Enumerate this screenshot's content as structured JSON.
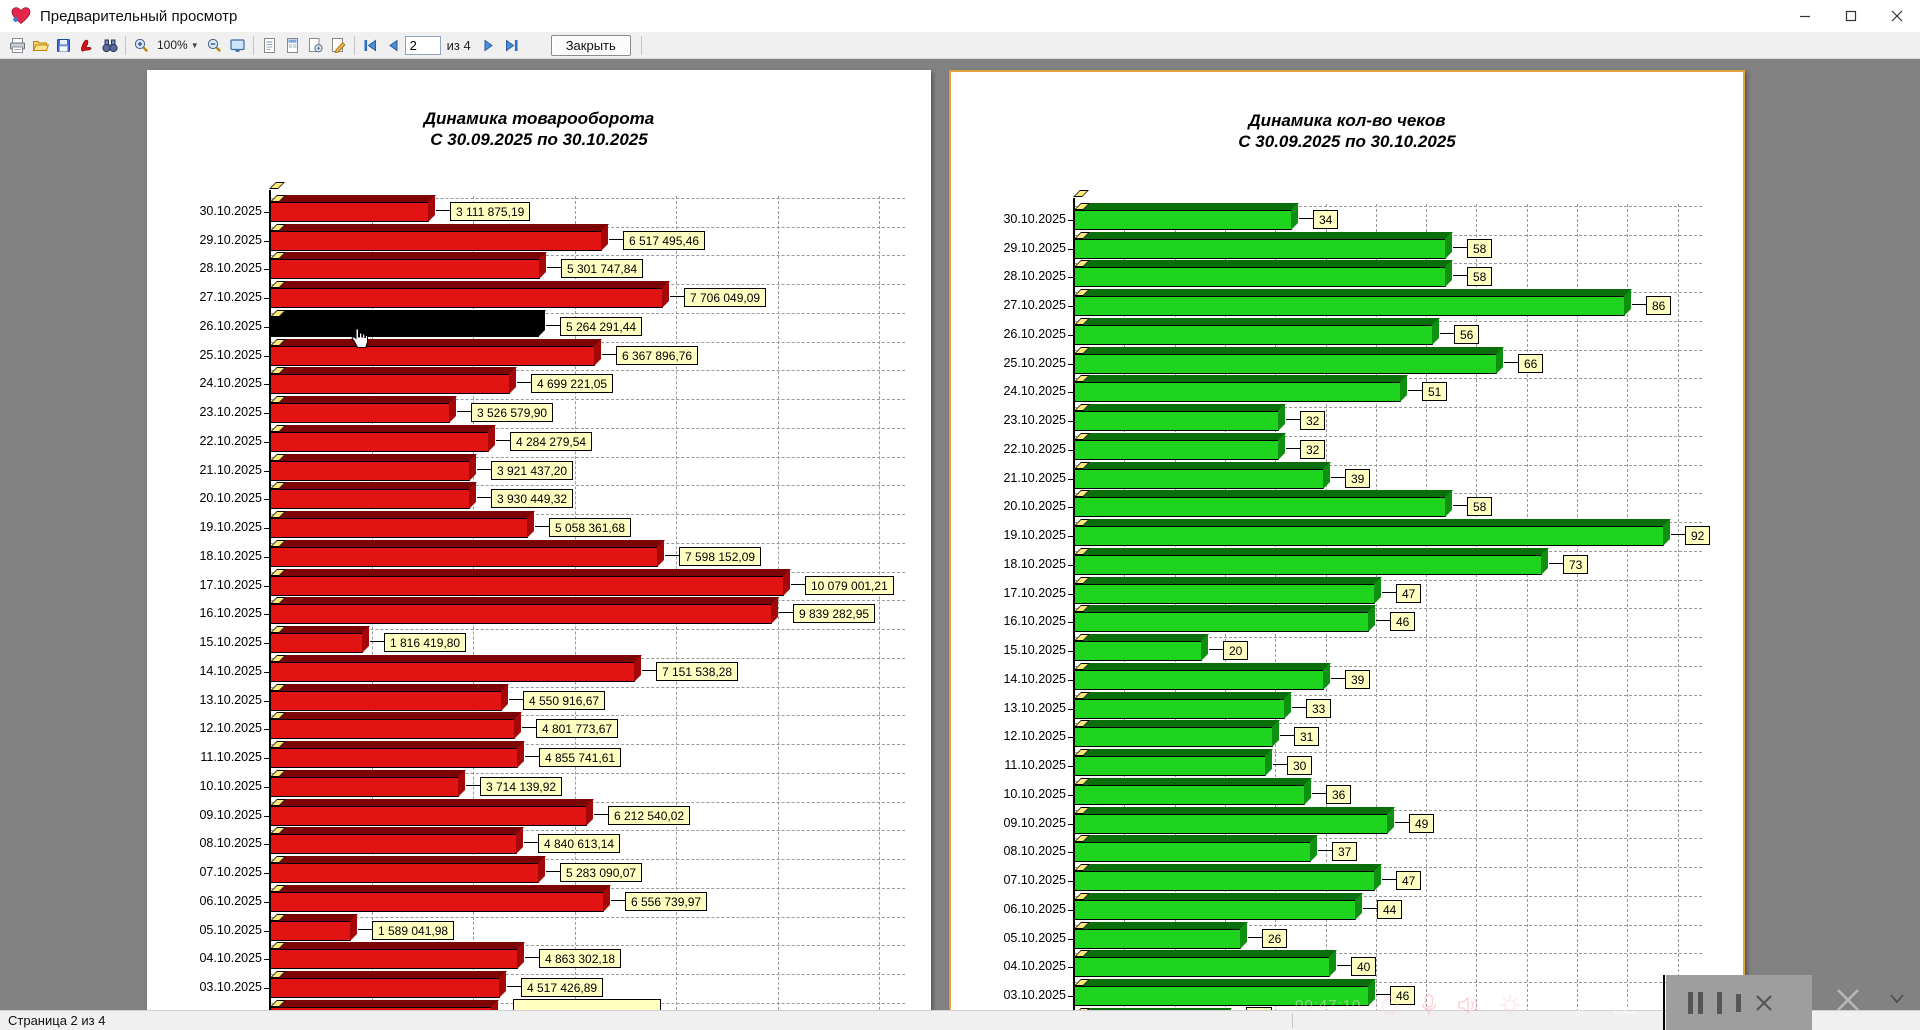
{
  "window": {
    "title": "Предварительный просмотр",
    "app_icon": "heart-logo",
    "controls": [
      "minimize",
      "maximize",
      "close"
    ]
  },
  "toolbar": {
    "icons": [
      "print",
      "open",
      "save",
      "export-pdf",
      "find",
      "zoom-in",
      "zoom-out",
      "fit-page",
      "page-text-view",
      "page-thumbnails-view",
      "page-tools",
      "page-edit",
      "first-page",
      "prev-page",
      "next-page",
      "last-page"
    ],
    "zoom_value": "100%",
    "page_value": "2",
    "pages_of_label": "из 4",
    "close_label": "Закрыть"
  },
  "status_bar": {
    "text": "Страница 2 из 4"
  },
  "overlay": {
    "timer": "00:47:10",
    "icons": [
      "stopwatch",
      "microphone",
      "speaker",
      "gear",
      "pencil",
      "camera",
      "pause",
      "stop",
      "close"
    ]
  },
  "chart_data": [
    {
      "type": "bar",
      "orientation": "horizontal",
      "title": "Динамика товарооборота",
      "subtitle": "С 30.09.2025 по 30.10.2025",
      "bar_color": "#e11313",
      "highlighted_index": 4,
      "highlight_color": "#000000",
      "scale_max": 12450000,
      "grid": true,
      "categories": [
        "30.10.2025",
        "29.10.2025",
        "28.10.2025",
        "27.10.2025",
        "26.10.2025",
        "25.10.2025",
        "24.10.2025",
        "23.10.2025",
        "22.10.2025",
        "21.10.2025",
        "20.10.2025",
        "19.10.2025",
        "18.10.2025",
        "17.10.2025",
        "16.10.2025",
        "15.10.2025",
        "14.10.2025",
        "13.10.2025",
        "12.10.2025",
        "11.10.2025",
        "10.10.2025",
        "09.10.2025",
        "08.10.2025",
        "07.10.2025",
        "06.10.2025",
        "05.10.2025",
        "04.10.2025",
        "03.10.2025"
      ],
      "values": [
        3111875.19,
        6517495.46,
        5301747.84,
        7706049.09,
        5264291.44,
        6367896.76,
        4699221.05,
        3526579.9,
        4284279.54,
        3921437.2,
        3930449.32,
        5058361.68,
        7598152.09,
        10079001.21,
        9839282.95,
        1816419.8,
        7151538.28,
        4550916.67,
        4801773.67,
        4855741.61,
        3714139.92,
        6212540.02,
        4840613.14,
        5283090.07,
        6556739.97,
        1589041.98,
        4863302.18,
        4517426.89
      ],
      "labels": [
        "3 111 875,19",
        "6 517 495,46",
        "5 301 747,84",
        "7 706 049,09",
        "5 264 291,44",
        "6 367 896,76",
        "4 699 221,05",
        "3 526 579,90",
        "4 284 279,54",
        "3 921 437,20",
        "3 930 449,32",
        "5 058 361,68",
        "7 598 152,09",
        "10 079 001,21",
        "9 839 282,95",
        "1 816 419,80",
        "7 151 538,28",
        "4 550 916,67",
        "4 801 773,67",
        "4 855 741,61",
        "3 714 139,92",
        "6 212 540,02",
        "4 840 613,14",
        "5 283 090,07",
        "6 556 739,97",
        "1 589 041,98",
        "4 863 302,18",
        "4 517 426,89"
      ],
      "partial_bar": {
        "visible": true,
        "fraction": 0.35,
        "label_min_width": 148
      }
    },
    {
      "type": "bar",
      "orientation": "horizontal",
      "title": "Динамика кол-во чеков",
      "subtitle": "С 30.09.2025 по 30.10.2025",
      "bar_color": "#1ed41e",
      "highlighted_index": -1,
      "scale_max": 98,
      "grid": true,
      "categories": [
        "30.10.2025",
        "29.10.2025",
        "28.10.2025",
        "27.10.2025",
        "26.10.2025",
        "25.10.2025",
        "24.10.2025",
        "23.10.2025",
        "22.10.2025",
        "21.10.2025",
        "20.10.2025",
        "19.10.2025",
        "18.10.2025",
        "17.10.2025",
        "16.10.2025",
        "15.10.2025",
        "14.10.2025",
        "13.10.2025",
        "12.10.2025",
        "11.10.2025",
        "10.10.2025",
        "09.10.2025",
        "08.10.2025",
        "07.10.2025",
        "06.10.2025",
        "05.10.2025",
        "04.10.2025",
        "03.10.2025"
      ],
      "values": [
        34,
        58,
        58,
        86,
        56,
        66,
        51,
        32,
        32,
        39,
        58,
        92,
        73,
        47,
        46,
        20,
        39,
        33,
        31,
        30,
        36,
        49,
        37,
        47,
        44,
        26,
        40,
        46
      ],
      "labels": [
        "34",
        "58",
        "58",
        "86",
        "56",
        "66",
        "51",
        "32",
        "32",
        "39",
        "58",
        "92",
        "73",
        "47",
        "46",
        "20",
        "39",
        "33",
        "31",
        "30",
        "36",
        "49",
        "37",
        "47",
        "44",
        "26",
        "40",
        "46"
      ],
      "partial_bar": {
        "visible": true,
        "fraction": 0.24,
        "label_min_width": 26
      }
    }
  ]
}
